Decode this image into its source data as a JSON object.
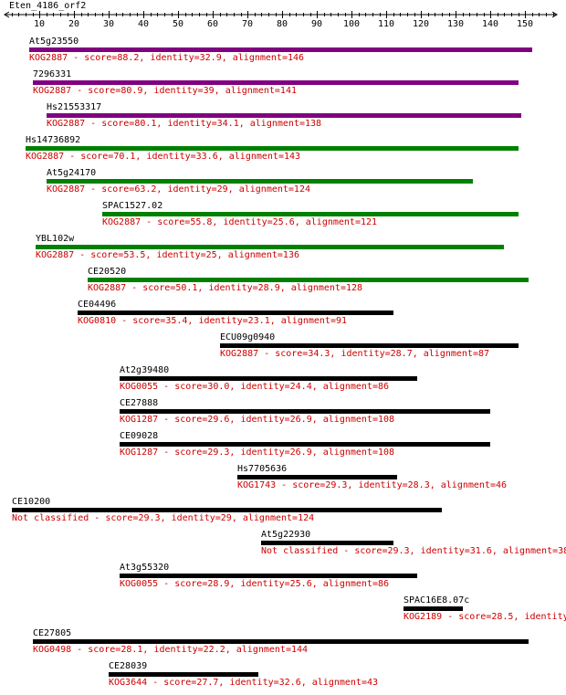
{
  "title": "Eten_4186_orf2",
  "axis": {
    "min": 1,
    "max": 158,
    "tick_labels": [
      "10",
      "20",
      "30",
      "40",
      "50",
      "60",
      "70",
      "80",
      "90",
      "100",
      "110",
      "120",
      "130",
      "140",
      "150"
    ]
  },
  "colors": {
    "purple": "#800080",
    "green": "#008000",
    "black": "#000000",
    "desc": "#cc0000"
  },
  "hits": [
    {
      "name": "At5g23550",
      "desc": "KOG2887 - score=88.2, identity=32.9, alignment=146",
      "start": 7,
      "end": 152,
      "color": "purple"
    },
    {
      "name": "7296331",
      "desc": "KOG2887 - score=80.9, identity=39, alignment=141",
      "start": 8,
      "end": 148,
      "color": "purple"
    },
    {
      "name": "Hs21553317",
      "desc": "KOG2887 - score=80.1, identity=34.1, alignment=138",
      "start": 12,
      "end": 149,
      "color": "purple"
    },
    {
      "name": "Hs14736892",
      "desc": "KOG2887 - score=70.1, identity=33.6, alignment=143",
      "start": 6,
      "end": 148,
      "color": "green"
    },
    {
      "name": "At5g24170",
      "desc": "KOG2887 - score=63.2, identity=29, alignment=124",
      "start": 12,
      "end": 135,
      "color": "green"
    },
    {
      "name": "SPAC1527.02",
      "desc": "KOG2887 - score=55.8, identity=25.6, alignment=121",
      "start": 28,
      "end": 148,
      "color": "green"
    },
    {
      "name": "YBL102w",
      "desc": "KOG2887 - score=53.5, identity=25, alignment=136",
      "start": 9,
      "end": 144,
      "color": "green"
    },
    {
      "name": "CE20520",
      "desc": "KOG2887 - score=50.1, identity=28.9, alignment=128",
      "start": 24,
      "end": 151,
      "color": "green"
    },
    {
      "name": "CE04496",
      "desc": "KOG0810 - score=35.4, identity=23.1, alignment=91",
      "start": 21,
      "end": 112,
      "color": "black"
    },
    {
      "name": "ECU09g0940",
      "desc": "KOG2887 - score=34.3, identity=28.7, alignment=87",
      "start": 62,
      "end": 148,
      "color": "black"
    },
    {
      "name": "At2g39480",
      "desc": "KOG0055 - score=30.0, identity=24.4, alignment=86",
      "start": 33,
      "end": 119,
      "color": "black"
    },
    {
      "name": "CE27888",
      "desc": "KOG1287 - score=29.6, identity=26.9, alignment=108",
      "start": 33,
      "end": 140,
      "color": "black"
    },
    {
      "name": "CE09028",
      "desc": "KOG1287 - score=29.3, identity=26.9, alignment=108",
      "start": 33,
      "end": 140,
      "color": "black"
    },
    {
      "name": "Hs7705636",
      "desc": "KOG1743 - score=29.3, identity=28.3, alignment=46",
      "start": 67,
      "end": 113,
      "color": "black"
    },
    {
      "name": "CE10200",
      "desc": "Not classified - score=29.3, identity=29, alignment=124",
      "start": 2,
      "end": 126,
      "color": "black"
    },
    {
      "name": "At5g22930",
      "desc": "Not classified - score=29.3, identity=31.6, alignment=38",
      "start": 74,
      "end": 112,
      "color": "black"
    },
    {
      "name": "At3g55320",
      "desc": "KOG0055 - score=28.9, identity=25.6, alignment=86",
      "start": 33,
      "end": 119,
      "color": "black"
    },
    {
      "name": "SPAC16E8.07c",
      "desc": "KOG2189 - score=28.5, identity",
      "start": 115,
      "end": 132,
      "color": "black"
    },
    {
      "name": "CE27805",
      "desc": "KOG0498 - score=28.1, identity=22.2, alignment=144",
      "start": 8,
      "end": 151,
      "color": "black"
    },
    {
      "name": "CE28039",
      "desc": "KOG3644 - score=27.7, identity=32.6, alignment=43",
      "start": 30,
      "end": 73,
      "color": "black"
    }
  ]
}
